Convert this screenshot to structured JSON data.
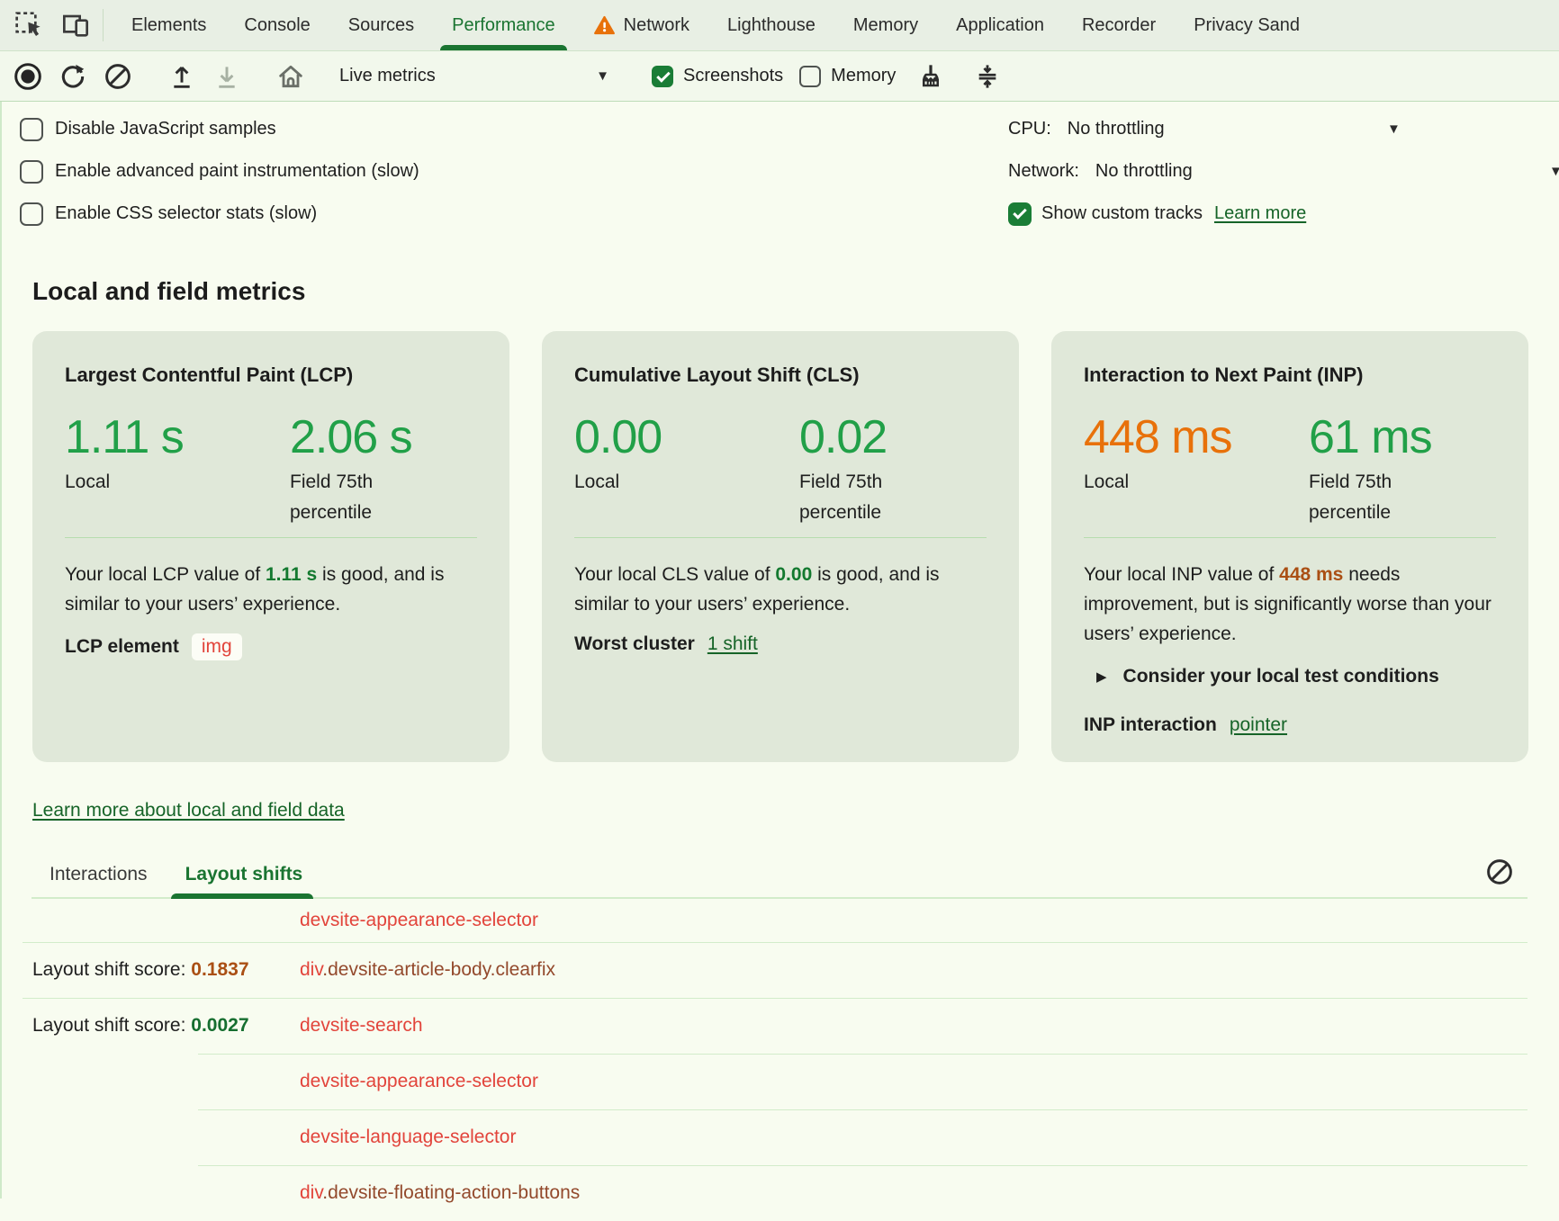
{
  "colors": {
    "orange_text": "#aa4f14",
    "green_score": "#166e30",
    "red_node": "#e2443b",
    "brown_node": "#93492c",
    "accent_green": "#1a7431",
    "big_green": "#21a048",
    "big_orange": "#e8710a"
  },
  "tabbar": {
    "tabs": [
      {
        "label": "Elements"
      },
      {
        "label": "Console"
      },
      {
        "label": "Sources"
      },
      {
        "label": "Performance",
        "selected": true
      },
      {
        "label": "Network",
        "warning": true
      },
      {
        "label": "Lighthouse"
      },
      {
        "label": "Memory"
      },
      {
        "label": "Application"
      },
      {
        "label": "Recorder"
      },
      {
        "label": "Privacy Sand"
      }
    ]
  },
  "toolbar": {
    "live_metrics_label": "Live metrics",
    "screenshots_label": "Screenshots",
    "screenshots_checked": true,
    "memory_label": "Memory",
    "memory_checked": false
  },
  "settings": {
    "checkboxes": [
      {
        "label": "Disable JavaScript samples",
        "checked": false
      },
      {
        "label": "Enable advanced paint instrumentation (slow)",
        "checked": false
      },
      {
        "label": "Enable CSS selector stats (slow)",
        "checked": false
      }
    ],
    "cpu_label": "CPU:",
    "cpu_value": "No throttling",
    "network_label": "Network:",
    "network_value": "No throttling",
    "custom_tracks_label": "Show custom tracks",
    "custom_tracks_checked": true,
    "custom_tracks_link": "Learn more"
  },
  "metrics": {
    "heading": "Local and field metrics",
    "local_label": "Local",
    "field_label": "Field 75th percentile",
    "cards": [
      {
        "title": "Largest Contentful Paint (LCP)",
        "local_value": "1.11 s",
        "field_value": "2.06 s",
        "desc_before": "Your local LCP value of ",
        "desc_value": "1.11 s",
        "desc_after": " is good, and is similar to your users’ experience.",
        "footer_label": "LCP element",
        "footer_badge": "img"
      },
      {
        "title": "Cumulative Layout Shift (CLS)",
        "local_value": "0.00",
        "field_value": "0.02",
        "desc_before": "Your local CLS value of ",
        "desc_value": "0.00",
        "desc_after": " is good, and is similar to your users’ experience.",
        "footer_label": "Worst cluster",
        "footer_link": "1 shift"
      },
      {
        "title": "Interaction to Next Paint (INP)",
        "local_value": "448 ms",
        "field_value": "61 ms",
        "desc_before": "Your local INP value of ",
        "desc_value": "448 ms",
        "desc_after": " needs improvement, but is significantly worse than your users’ experience.",
        "disclosure": "Consider your local test conditions",
        "footer_label": "INP interaction",
        "footer_link": "pointer"
      }
    ],
    "learn_more_link": "Learn more about local and field data"
  },
  "log": {
    "tabs": [
      {
        "label": "Interactions"
      },
      {
        "label": "Layout shifts",
        "active": true
      }
    ],
    "score_label": "Layout shift score: ",
    "rows": [
      {
        "node": "devsite-appearance-selector",
        "divider": "none"
      },
      {
        "score": "0.1837",
        "score_color": "orange_text",
        "node_prefix": "div",
        "node_rest": ".devsite-article-body.clearfix",
        "divider": "full"
      },
      {
        "score": "0.0027",
        "score_color": "green_score",
        "node": "devsite-search",
        "divider": "full"
      },
      {
        "node": "devsite-appearance-selector",
        "divider": "indent"
      },
      {
        "node": "devsite-language-selector",
        "divider": "indent"
      },
      {
        "node_prefix": "div",
        "node_rest": ".devsite-floating-action-buttons",
        "divider": "indent"
      }
    ]
  }
}
